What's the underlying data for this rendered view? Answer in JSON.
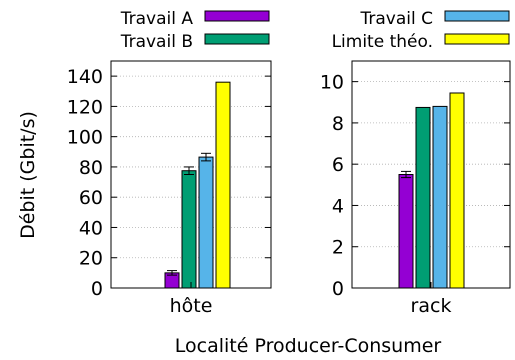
{
  "chart_data": {
    "type": "bar",
    "ylabel": "Débit (Gbit/s)",
    "xlabel": "Localité Producer-Consumer",
    "grid": "horizontal-dotted",
    "legend_placement": "top",
    "legend": [
      {
        "name": "Travail A",
        "color": "#9400d3"
      },
      {
        "name": "Travail B",
        "color": "#009e73"
      },
      {
        "name": "Travail C",
        "color": "#56b4e9"
      },
      {
        "name": "Limite théo.",
        "color": "#ffff00"
      }
    ],
    "panels": [
      {
        "category": "hôte",
        "ylim": [
          0,
          150
        ],
        "yticks": [
          0,
          20,
          40,
          60,
          80,
          100,
          120,
          140
        ],
        "series": [
          {
            "name": "Travail A",
            "value": 10,
            "error": 1.5
          },
          {
            "name": "Travail B",
            "value": 77.5,
            "error": 2.5
          },
          {
            "name": "Travail C",
            "value": 86.5,
            "error": 2.5
          },
          {
            "name": "Limite théo.",
            "value": 136
          }
        ]
      },
      {
        "category": "rack",
        "ylim": [
          0,
          11
        ],
        "yticks": [
          0,
          2,
          4,
          6,
          8,
          10
        ],
        "series": [
          {
            "name": "Travail A",
            "value": 5.5,
            "error": 0.15
          },
          {
            "name": "Travail B",
            "value": 8.75
          },
          {
            "name": "Travail C",
            "value": 8.8
          },
          {
            "name": "Limite théo.",
            "value": 9.45
          }
        ]
      }
    ]
  }
}
